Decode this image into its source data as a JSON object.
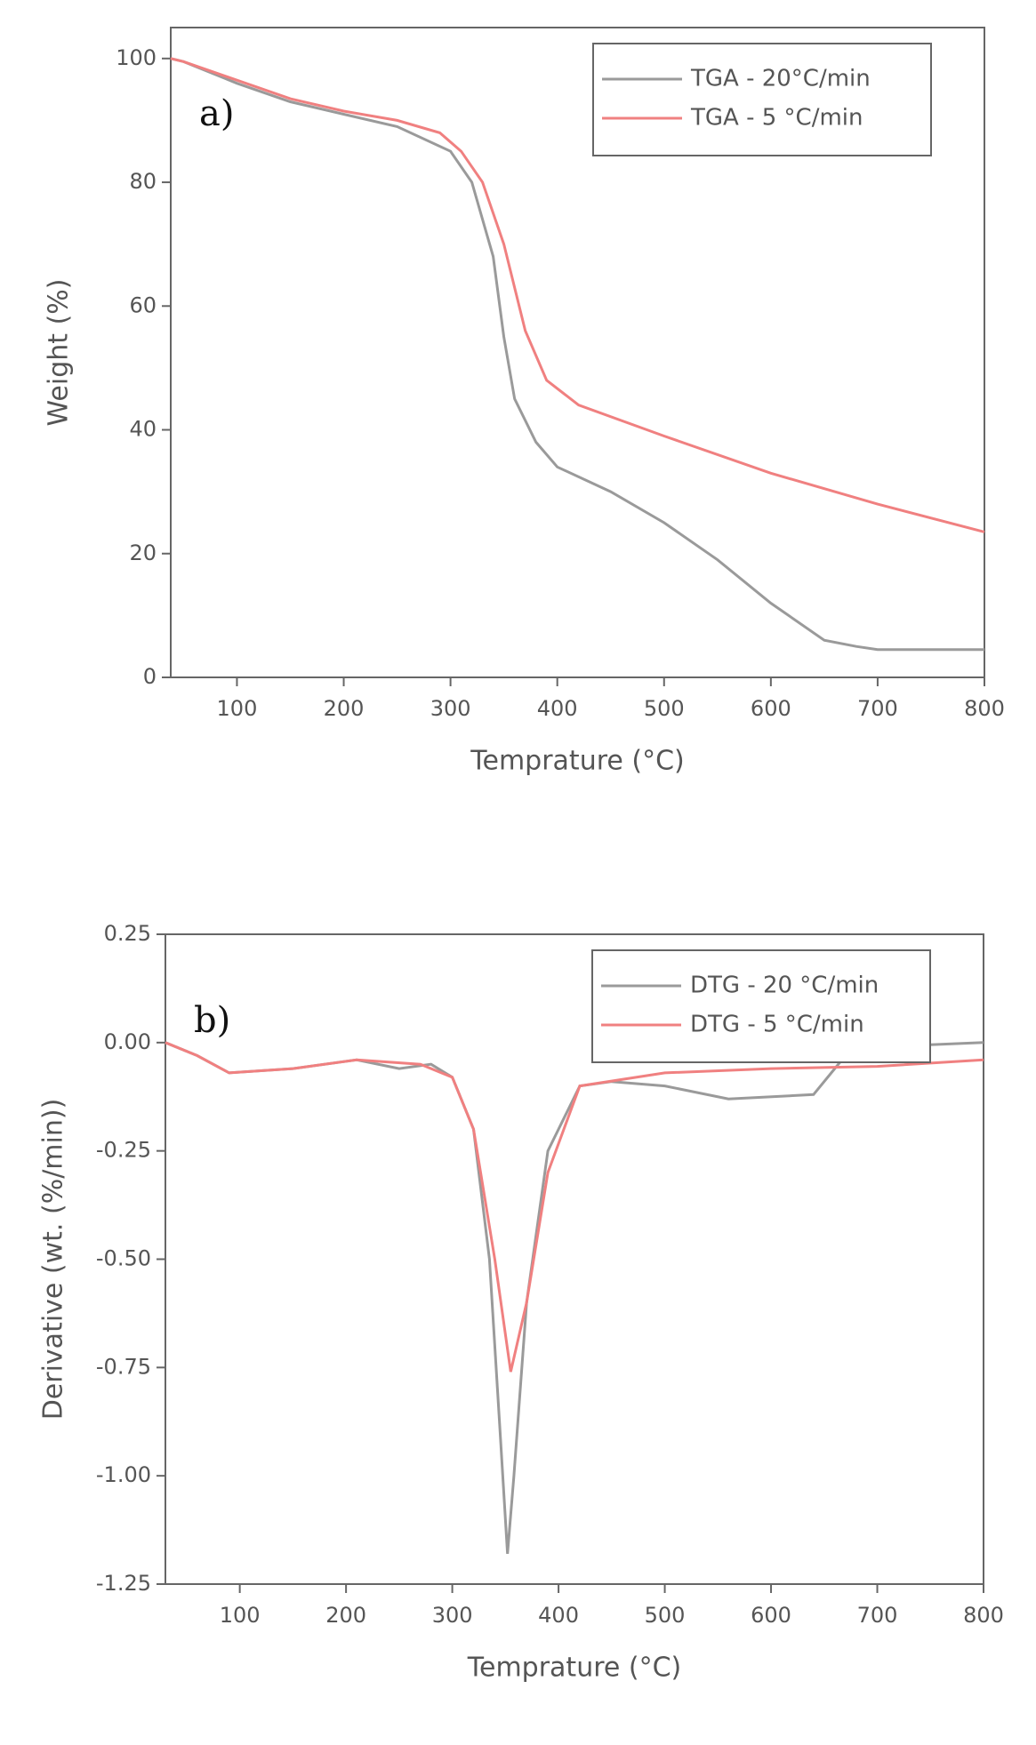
{
  "chart_data": [
    {
      "type": "line",
      "annotation": "a)",
      "xlabel": "Temprature (°C)",
      "ylabel": "Weight (%)",
      "xlim": [
        38,
        800
      ],
      "xticks": [
        100,
        200,
        300,
        400,
        500,
        600,
        700,
        800
      ],
      "ylim": [
        0,
        105
      ],
      "yticks": [
        0,
        20,
        40,
        60,
        80,
        100
      ],
      "legend_position": "upper right",
      "series": [
        {
          "name": "TGA - 20°C/min",
          "color": "#9a9a9a",
          "x": [
            38,
            50,
            100,
            150,
            200,
            250,
            300,
            320,
            340,
            350,
            360,
            380,
            400,
            450,
            500,
            550,
            600,
            650,
            680,
            700,
            800
          ],
          "values": [
            100,
            99.5,
            96,
            93,
            91,
            89,
            85,
            80,
            68,
            55,
            45,
            38,
            34,
            30,
            25,
            19,
            12,
            6,
            5,
            4.5,
            4.5
          ]
        },
        {
          "name": "TGA - 5 °C/min",
          "color": "#f08080",
          "x": [
            38,
            50,
            100,
            150,
            200,
            250,
            290,
            310,
            330,
            350,
            370,
            390,
            420,
            500,
            600,
            700,
            800
          ],
          "values": [
            100,
            99.5,
            96.5,
            93.5,
            91.5,
            90,
            88,
            85,
            80,
            70,
            56,
            48,
            44,
            39,
            33,
            28,
            23.5
          ]
        }
      ]
    },
    {
      "type": "line",
      "annotation": "b)",
      "xlabel": "Temprature (°C)",
      "ylabel": "Derivative (wt. (%/min))",
      "xlim": [
        30,
        800
      ],
      "xticks": [
        100,
        200,
        300,
        400,
        500,
        600,
        700,
        800
      ],
      "ylim": [
        -1.25,
        0.25
      ],
      "yticks": [
        0.25,
        {
          "value": 0,
          "label": "0.00"
        },
        -0.25,
        {
          "value": -0.5,
          "label": "-0.50"
        },
        -0.75,
        {
          "value": -1,
          "label": "-1.00"
        },
        -1.25
      ],
      "legend_position": "upper right",
      "series": [
        {
          "name": "DTG - 20 °C/min",
          "color": "#9a9a9a",
          "x": [
            30,
            60,
            90,
            150,
            210,
            250,
            280,
            300,
            320,
            335,
            345,
            352,
            358,
            370,
            390,
            420,
            450,
            500,
            560,
            640,
            670,
            700,
            800
          ],
          "values": [
            0,
            -0.03,
            -0.07,
            -0.06,
            -0.04,
            -0.06,
            -0.05,
            -0.08,
            -0.2,
            -0.5,
            -0.9,
            -1.18,
            -1.0,
            -0.6,
            -0.25,
            -0.1,
            -0.09,
            -0.1,
            -0.13,
            -0.12,
            -0.03,
            -0.01,
            0
          ]
        },
        {
          "name": "DTG - 5 °C/min",
          "color": "#f08080",
          "x": [
            30,
            60,
            90,
            150,
            210,
            270,
            300,
            320,
            340,
            355,
            370,
            390,
            420,
            500,
            600,
            700,
            800
          ],
          "values": [
            0,
            -0.03,
            -0.07,
            -0.06,
            -0.04,
            -0.05,
            -0.08,
            -0.2,
            -0.5,
            -0.76,
            -0.6,
            -0.3,
            -0.1,
            -0.07,
            -0.06,
            -0.055,
            -0.04
          ]
        }
      ]
    }
  ]
}
